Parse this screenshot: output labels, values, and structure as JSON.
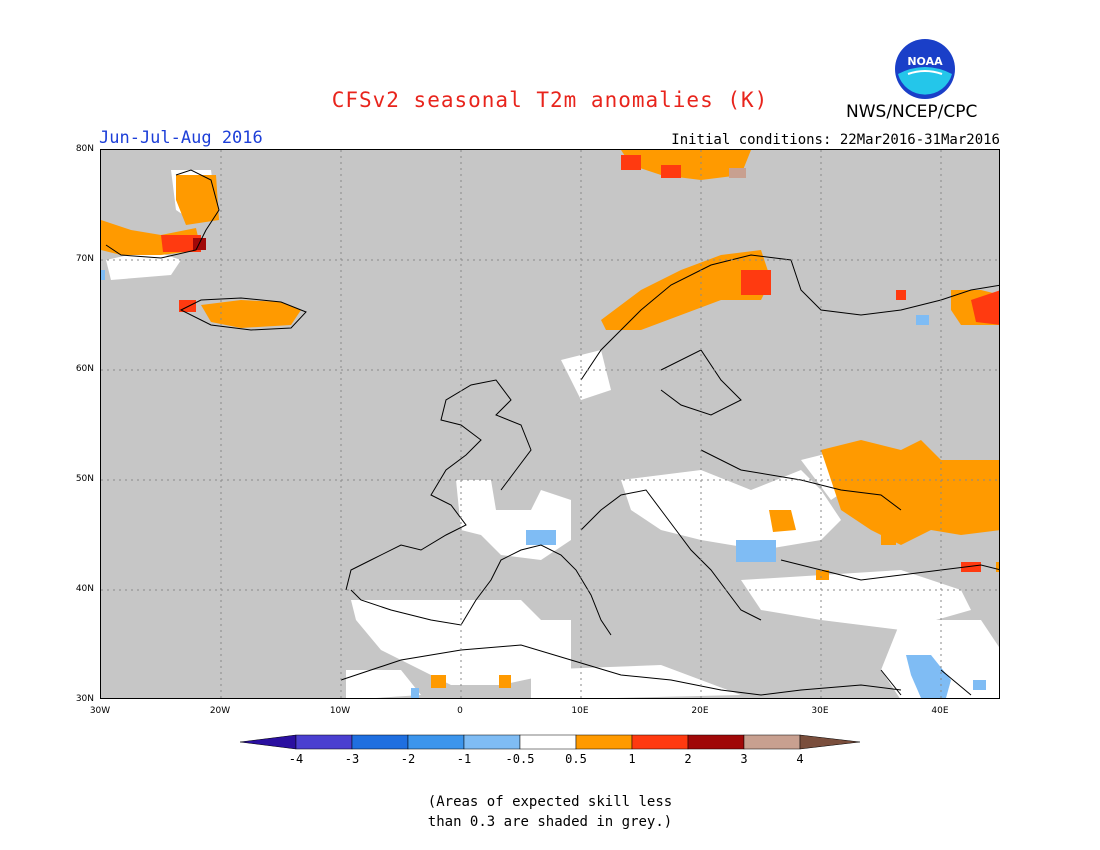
{
  "header": {
    "title": "CFSv2 seasonal T2m anomalies (K)",
    "agency": "NWS/NCEP/CPC",
    "season": "Jun-Jul-Aug 2016",
    "initial_conditions": "Initial conditions: 22Mar2016-31Mar2016"
  },
  "logo": {
    "icon": "noaa-logo",
    "text": "NOAA"
  },
  "map": {
    "lat_labels": [
      "80N",
      "70N",
      "60N",
      "50N",
      "40N",
      "30N"
    ],
    "lon_labels": [
      "30W",
      "20W",
      "10W",
      "0",
      "10E",
      "20E",
      "30E",
      "40E"
    ],
    "background_color": "#c6c6c6"
  },
  "colorbar": {
    "labels": [
      "-4",
      "-3",
      "-2",
      "-1",
      "-0.5",
      "0.5",
      "1",
      "2",
      "3",
      "4"
    ],
    "colors": [
      "#2a0fa0",
      "#4a3fd0",
      "#1f6fe0",
      "#3c95ec",
      "#7fbcf4",
      "#ffffff",
      "#ff9a00",
      "#ff3a10",
      "#a00808",
      "#c8a090",
      "#7a4e3c"
    ]
  },
  "footnote": {
    "line1": "(Areas of expected skill less",
    "line2": "than 0.3 are shaded in grey.)"
  }
}
